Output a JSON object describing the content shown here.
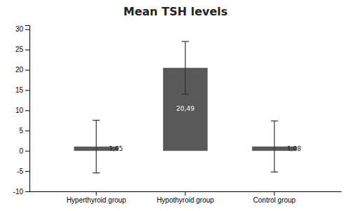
{
  "chart_data": {
    "type": "bar",
    "title": "Mean TSH levels",
    "categories": [
      "Hyperthyroid group",
      "Hypothyroid group",
      "Control group"
    ],
    "values": [
      1.05,
      20.49,
      1.08
    ],
    "errors": [
      6.5,
      6.5,
      6.3
    ],
    "value_labels": [
      "1,05",
      "20,49",
      "1,08"
    ],
    "data_labels": true,
    "color": "#595959",
    "ylim": [
      -10,
      31
    ],
    "yticks": [
      -10,
      -5,
      0,
      5,
      10,
      15,
      20,
      25,
      30
    ],
    "grid": false
  }
}
